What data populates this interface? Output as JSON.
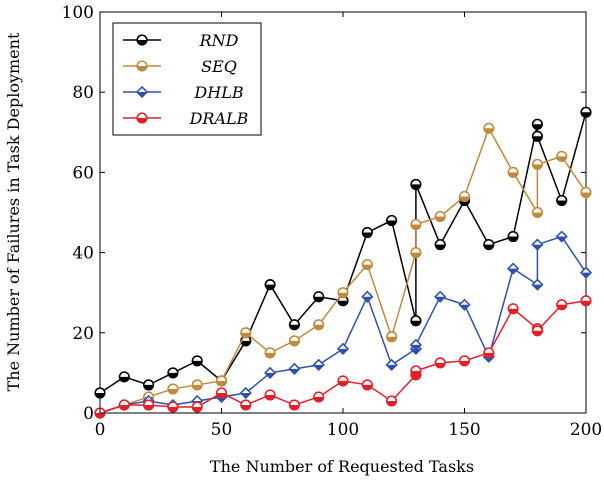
{
  "chart_data": {
    "type": "line",
    "xlabel": "The Number of Requested Tasks",
    "ylabel": "The Number of Failures in Task Deployment",
    "xlim": [
      0,
      200
    ],
    "ylim": [
      0,
      100
    ],
    "x_ticks": [
      "0",
      "50",
      "100",
      "150",
      "200"
    ],
    "y_ticks": [
      "0",
      "20",
      "40",
      "60",
      "80",
      "100"
    ],
    "grid": false,
    "legend_position": "top-left",
    "series": [
      {
        "name": "RND",
        "color": "#000000",
        "marker": "half-filled-circle",
        "x": [
          0,
          10,
          20,
          30,
          40,
          50,
          60,
          70,
          80,
          90,
          100,
          110,
          120,
          130,
          130,
          140,
          150,
          160,
          170,
          180,
          180,
          190,
          200
        ],
        "values": [
          5,
          9,
          7,
          10,
          13,
          8,
          18,
          32,
          22,
          29,
          28,
          45,
          48,
          23,
          57,
          42,
          53,
          42,
          44,
          72,
          69,
          53,
          75
        ]
      },
      {
        "name": "SEQ",
        "color": "#c08a3e",
        "marker": "half-filled-circle",
        "x": [
          0,
          10,
          20,
          30,
          40,
          50,
          60,
          70,
          80,
          90,
          100,
          110,
          120,
          130,
          130,
          140,
          150,
          160,
          170,
          180,
          180,
          190,
          200
        ],
        "values": [
          0,
          2,
          4,
          6,
          7,
          8,
          20,
          15,
          18,
          22,
          30,
          37,
          19,
          40,
          47,
          49,
          54,
          71,
          60,
          50,
          62,
          64,
          55
        ]
      },
      {
        "name": "DHLB",
        "color": "#2f52a8",
        "marker": "half-filled-diamond",
        "x": [
          0,
          10,
          20,
          30,
          40,
          50,
          60,
          70,
          80,
          90,
          100,
          110,
          120,
          130,
          130,
          140,
          150,
          160,
          170,
          180,
          180,
          190,
          200
        ],
        "values": [
          0,
          2,
          3,
          2,
          3,
          4,
          5,
          10,
          11,
          12,
          16,
          29,
          12,
          16,
          17,
          29,
          27,
          14,
          36,
          32,
          42,
          44,
          35
        ]
      },
      {
        "name": "DRALB",
        "color": "#e0202a",
        "marker": "half-filled-circle",
        "x": [
          0,
          10,
          20,
          30,
          40,
          50,
          60,
          70,
          80,
          90,
          100,
          110,
          120,
          130,
          130,
          140,
          150,
          160,
          170,
          180,
          180,
          190,
          200
        ],
        "values": [
          0,
          2,
          2,
          1.5,
          1.5,
          5,
          2,
          4.5,
          2,
          4,
          8,
          7,
          3,
          9.5,
          10.5,
          12.5,
          13,
          15,
          26,
          21,
          20.5,
          27,
          28
        ]
      }
    ]
  }
}
